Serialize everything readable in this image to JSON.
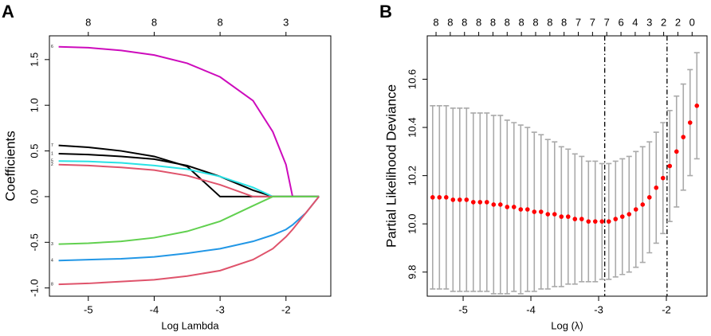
{
  "chart_data": [
    {
      "type": "line",
      "panel": "A",
      "x_label": "Log Lambda",
      "y_label": "Coefficients",
      "x": [
        -5.45,
        -5,
        -4.5,
        -4,
        -3.5,
        -3,
        -2.5,
        -2.2,
        -2,
        -1.9,
        -1.7,
        -1.5
      ],
      "series": [
        {
          "name": "6",
          "color": "#cd0bbc",
          "values": [
            1.64,
            1.63,
            1.6,
            1.55,
            1.46,
            1.31,
            1.05,
            0.71,
            0.35,
            0,
            0,
            0
          ]
        },
        {
          "name": "7",
          "color": "#000000",
          "values": [
            0.56,
            0.54,
            0.5,
            0.44,
            0.33,
            0,
            0,
            0,
            0,
            0,
            0,
            0
          ]
        },
        {
          "name": "1",
          "color": "#000000",
          "values": [
            0.47,
            0.46,
            0.44,
            0.41,
            0.34,
            0.22,
            0.07,
            0,
            0,
            0,
            0,
            0
          ]
        },
        {
          "name": "5",
          "color": "#28e2e5",
          "values": [
            0.39,
            0.385,
            0.37,
            0.34,
            0.3,
            0.22,
            0.1,
            0,
            0,
            0,
            0,
            0
          ]
        },
        {
          "name": "2",
          "color": "#df536b",
          "values": [
            0.35,
            0.34,
            0.32,
            0.29,
            0.23,
            0.13,
            0,
            0,
            0,
            0,
            0,
            0
          ]
        },
        {
          "name": "3",
          "color": "#61d04f",
          "values": [
            -0.52,
            -0.51,
            -0.49,
            -0.45,
            -0.38,
            -0.27,
            -0.1,
            0,
            0,
            0,
            0,
            0
          ]
        },
        {
          "name": "4",
          "color": "#2297e6",
          "values": [
            -0.7,
            -0.69,
            -0.68,
            -0.66,
            -0.62,
            -0.57,
            -0.49,
            -0.42,
            -0.36,
            -0.31,
            -0.18,
            0
          ]
        },
        {
          "name": "8",
          "color": "#df536b",
          "values": [
            -0.96,
            -0.95,
            -0.93,
            -0.91,
            -0.87,
            -0.81,
            -0.69,
            -0.57,
            -0.44,
            -0.36,
            -0.18,
            0
          ]
        }
      ],
      "xlim": [
        -5.59,
        -1.32
      ],
      "xticks": [
        -5,
        -4,
        -3,
        -2
      ],
      "ylim": [
        -1.09,
        1.76
      ],
      "yticks": [
        1.5,
        {
          "value": 1,
          "label": "1.0"
        },
        0.5,
        {
          "value": 0,
          "label": "0.0"
        },
        -0.5,
        {
          "value": -1,
          "label": "-1.0"
        }
      ],
      "top_ticks": [
        {
          "value": -5,
          "label": "8"
        },
        {
          "value": -4,
          "label": "8"
        },
        {
          "value": -3,
          "label": "8"
        },
        {
          "value": -2,
          "label": "3"
        }
      ]
    },
    {
      "type": "errorbar",
      "panel": "B",
      "x_label": "Log (λ)",
      "y_label": "Partial Likelihood Deviance",
      "color": "#ff0000",
      "error_color": "#aaaaaa",
      "x": [
        -5.45,
        -5.35,
        -5.25,
        -5.15,
        -5.05,
        -4.95,
        -4.85,
        -4.75,
        -4.65,
        -4.55,
        -4.45,
        -4.35,
        -4.25,
        -4.15,
        -4.05,
        -3.95,
        -3.85,
        -3.75,
        -3.65,
        -3.55,
        -3.45,
        -3.35,
        -3.25,
        -3.15,
        -3.05,
        -2.95,
        -2.85,
        -2.75,
        -2.65,
        -2.55,
        -2.45,
        -2.35,
        -2.25,
        -2.15,
        -2.05,
        -1.95,
        -1.85,
        -1.75,
        -1.65,
        -1.55
      ],
      "values": [
        10.11,
        10.11,
        10.11,
        10.1,
        10.1,
        10.1,
        10.09,
        10.09,
        10.09,
        10.08,
        10.08,
        10.07,
        10.07,
        10.06,
        10.06,
        10.05,
        10.05,
        10.04,
        10.04,
        10.03,
        10.03,
        10.02,
        10.02,
        10.01,
        10.01,
        10.01,
        10.01,
        10.02,
        10.03,
        10.04,
        10.06,
        10.08,
        10.11,
        10.15,
        10.19,
        10.24,
        10.3,
        10.36,
        10.42,
        10.49
      ],
      "errors": [
        0.38,
        0.38,
        0.38,
        0.38,
        0.38,
        0.38,
        0.37,
        0.37,
        0.37,
        0.37,
        0.37,
        0.36,
        0.35,
        0.35,
        0.34,
        0.33,
        0.32,
        0.31,
        0.3,
        0.29,
        0.28,
        0.27,
        0.26,
        0.25,
        0.25,
        0.24,
        0.24,
        0.24,
        0.24,
        0.24,
        0.24,
        0.24,
        0.23,
        0.23,
        0.23,
        0.23,
        0.23,
        0.22,
        0.22,
        0.22
      ],
      "vlines": [
        -2.91,
        -1.99
      ],
      "xlim": [
        -5.53,
        -1.4
      ],
      "xticks": [
        -5,
        -4,
        -3,
        -2
      ],
      "ylim": [
        9.7,
        10.78
      ],
      "yticks": [
        9.8,
        {
          "value": 10,
          "label": "10.0"
        },
        10.2,
        10.4,
        10.6
      ],
      "top_ticks": [
        {
          "value": -5.4,
          "label": "8"
        },
        {
          "value": -5.19,
          "label": "8"
        },
        {
          "value": -4.98,
          "label": "8"
        },
        {
          "value": -4.77,
          "label": "8"
        },
        {
          "value": -4.56,
          "label": "8"
        },
        {
          "value": -4.35,
          "label": "8"
        },
        {
          "value": -4.14,
          "label": "8"
        },
        {
          "value": -3.93,
          "label": "8"
        },
        {
          "value": -3.72,
          "label": "8"
        },
        {
          "value": -3.51,
          "label": "8"
        },
        {
          "value": -3.3,
          "label": "7"
        },
        {
          "value": -3.09,
          "label": "7"
        },
        {
          "value": -2.88,
          "label": "7"
        },
        {
          "value": -2.67,
          "label": "6"
        },
        {
          "value": -2.46,
          "label": "4"
        },
        {
          "value": -2.25,
          "label": "3"
        },
        {
          "value": -2.04,
          "label": "2"
        },
        {
          "value": -1.83,
          "label": "2"
        },
        {
          "value": -1.62,
          "label": "0"
        }
      ]
    }
  ]
}
